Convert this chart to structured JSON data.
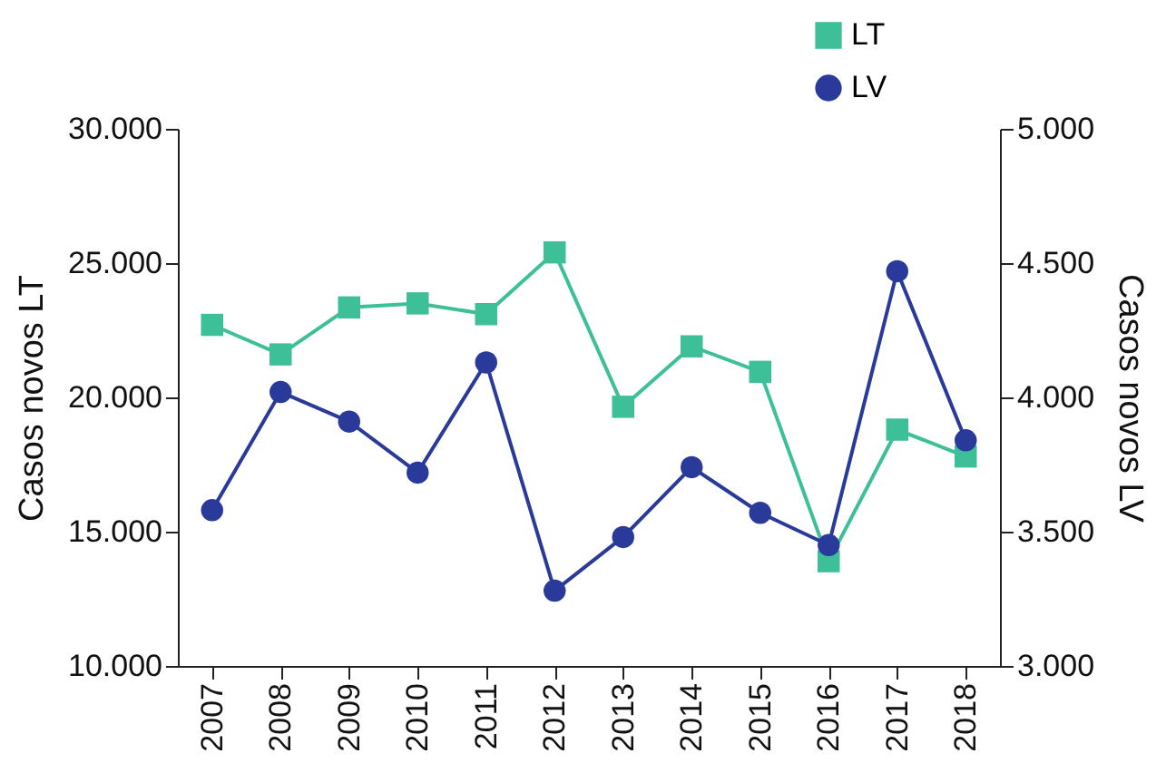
{
  "chart_data": {
    "type": "line",
    "categories": [
      "2007",
      "2008",
      "2009",
      "2010",
      "2011",
      "2012",
      "2013",
      "2014",
      "2015",
      "2016",
      "2017",
      "2018"
    ],
    "series": [
      {
        "name": "LT",
        "color": "#3dbf98",
        "marker": "square",
        "values": [
          22700,
          21600,
          23350,
          23500,
          23100,
          25400,
          19650,
          21900,
          20950,
          13900,
          18800,
          17800
        ]
      },
      {
        "name": "LV",
        "color": "#2a3a9a",
        "marker": "circle",
        "axis": "y2",
        "values": [
          3580,
          4020,
          3910,
          3720,
          4130,
          3280,
          3480,
          3740,
          3570,
          3450,
          4470,
          3840
        ]
      }
    ],
    "ylabel": "Casos novos LT",
    "y2label": "Casos novos LV",
    "ylim": [
      10000,
      30000
    ],
    "yticks": [
      {
        "value": 10000,
        "label": "10.000"
      },
      {
        "value": 15000,
        "label": "15.000"
      },
      {
        "value": 20000,
        "label": "20.000"
      },
      {
        "value": 25000,
        "label": "25.000"
      },
      {
        "value": 30000,
        "label": "30.000"
      }
    ],
    "y2lim": [
      3000,
      5000
    ],
    "y2ticks": [
      {
        "value": 3000,
        "label": "3.000"
      },
      {
        "value": 3500,
        "label": "3.500"
      },
      {
        "value": 4000,
        "label": "4.000"
      },
      {
        "value": 4500,
        "label": "4.500"
      },
      {
        "value": 5000,
        "label": "5.000"
      }
    ],
    "grid": false,
    "legend": "top right"
  }
}
